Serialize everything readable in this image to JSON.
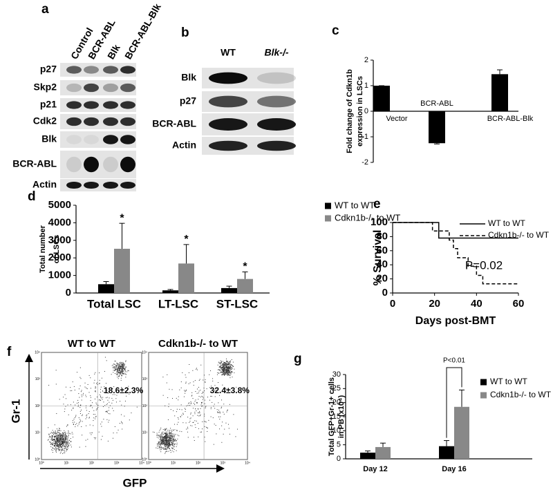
{
  "blots": [
    {
      "label": "a",
      "columns": [
        "Control",
        "BCR-ABL",
        "Blk",
        "BCR-ABL-Blk"
      ],
      "rows": [
        "p27",
        "Skp2",
        "p21",
        "Cdk2",
        "Blk",
        "BCR-ABL",
        "Actin"
      ]
    },
    {
      "label": "b",
      "columns": [
        "WT",
        "Blk-/-"
      ],
      "rows": [
        "Blk",
        "p27",
        "BCR-ABL",
        "Actin"
      ]
    }
  ],
  "chart_data": [
    {
      "type": "bar",
      "label": "c",
      "ylabel": [
        "Fold change of Cdkn1b",
        "expression in LSCs"
      ],
      "categories": [
        "Vector",
        "BCR-ABL",
        "BCR-ABL-Blk"
      ],
      "values": [
        1,
        -1.25,
        1.45
      ],
      "errors": [
        0,
        0.03,
        0.17
      ],
      "color": "#000000",
      "ylim": [
        -2,
        2
      ],
      "yticks": [
        -2,
        -1,
        0,
        1,
        2
      ]
    },
    {
      "type": "grouped_bar",
      "label": "d",
      "ylabel": [
        "Total number",
        "of LSCs"
      ],
      "categories": [
        "Total LSC",
        "LT-LSC",
        "ST-LSC"
      ],
      "series": [
        {
          "name": "WT to WT",
          "color": "#000000",
          "values": [
            500,
            150,
            280
          ],
          "errors": [
            150,
            50,
            110
          ]
        },
        {
          "name": "Cdkn1b-/- to WT",
          "color": "#888888",
          "values": [
            2520,
            1680,
            800
          ],
          "errors": [
            1450,
            1080,
            400
          ]
        }
      ],
      "ylim": [
        0,
        5000
      ],
      "yticks": [
        0,
        1000,
        2000,
        3000,
        4000,
        5000
      ],
      "annotations": [
        "*",
        "*",
        "*"
      ]
    },
    {
      "type": "line",
      "label": "e",
      "xlabel": "Days post-BMT",
      "ylabel": "% Survival",
      "series": [
        {
          "name": "WT to WT",
          "color": "#000000",
          "style": "solid",
          "x": [
            0,
            22,
            22,
            60
          ],
          "values": [
            100,
            100,
            78,
            78
          ]
        },
        {
          "name": "Cdkn1b-/- to WT",
          "color": "#000000",
          "style": "dashed",
          "x": [
            0,
            19,
            19,
            27,
            27,
            29,
            29,
            31,
            31,
            36,
            36,
            40,
            40,
            43,
            43,
            60
          ],
          "values": [
            100,
            100,
            88,
            88,
            75,
            75,
            63,
            63,
            50,
            50,
            38,
            38,
            25,
            25,
            13,
            13
          ]
        }
      ],
      "xlim": [
        0,
        60
      ],
      "xticks": [
        0,
        20,
        40,
        60
      ],
      "ylim": [
        0,
        100
      ],
      "yticks": [
        0,
        20,
        40,
        60,
        80,
        100
      ],
      "annotation": "P=0.02"
    },
    {
      "type": "grouped_bar",
      "label": "g",
      "ylabel": [
        "Total GFP+Gr-1+ cells",
        "in PB (x10⁴)"
      ],
      "categories": [
        "Day 12",
        "Day 16"
      ],
      "series": [
        {
          "name": "WT to WT",
          "color": "#000000",
          "values": [
            2.2,
            4.5
          ],
          "errors": [
            0.6,
            2.0
          ]
        },
        {
          "name": "Cdkn1b-/- to WT",
          "color": "#888888",
          "values": [
            4.2,
            18.5
          ],
          "errors": [
            1.4,
            6.0
          ]
        }
      ],
      "ylim": [
        0,
        30
      ],
      "yticks": [
        0,
        5,
        10,
        15,
        20,
        25,
        30
      ],
      "annotation": "P<0.01"
    }
  ],
  "flow": {
    "label": "f",
    "y_label": "Gr-1",
    "x_label": "GFP",
    "axis_ticks": [
      "10⁰",
      "10¹",
      "10²",
      "10³",
      "10⁴"
    ],
    "plots": [
      {
        "title": "WT to WT",
        "gate_value": "18.6±2.3%"
      },
      {
        "title": "Cdkn1b-/- to WT",
        "gate_value": "32.4±3.8%"
      }
    ]
  }
}
